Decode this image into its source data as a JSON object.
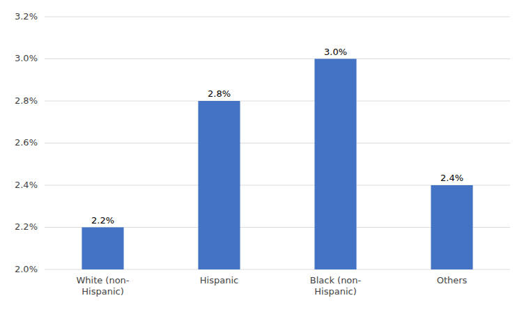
{
  "chart_data": {
    "type": "bar",
    "categories": [
      "White (non-\nHispanic)",
      "Hispanic",
      "Black (non-\nHispanic)",
      "Others"
    ],
    "values": [
      2.2,
      2.8,
      3.0,
      2.4
    ],
    "value_labels": [
      "2.2%",
      "2.8%",
      "3.0%",
      "2.4%"
    ],
    "data_labels": true,
    "color": "#4472C4",
    "ylim": [
      2.0,
      3.2
    ],
    "yticks": [
      {
        "value": 2.0,
        "label": "2.0%"
      },
      {
        "value": 2.2,
        "label": "2.2%"
      },
      {
        "value": 2.4,
        "label": "2.4%"
      },
      {
        "value": 2.6,
        "label": "2.6%"
      },
      {
        "value": 2.8,
        "label": "2.8%"
      },
      {
        "value": 3.0,
        "label": "3.0%"
      },
      {
        "value": 3.2,
        "label": "3.2%"
      }
    ],
    "grid": true
  }
}
